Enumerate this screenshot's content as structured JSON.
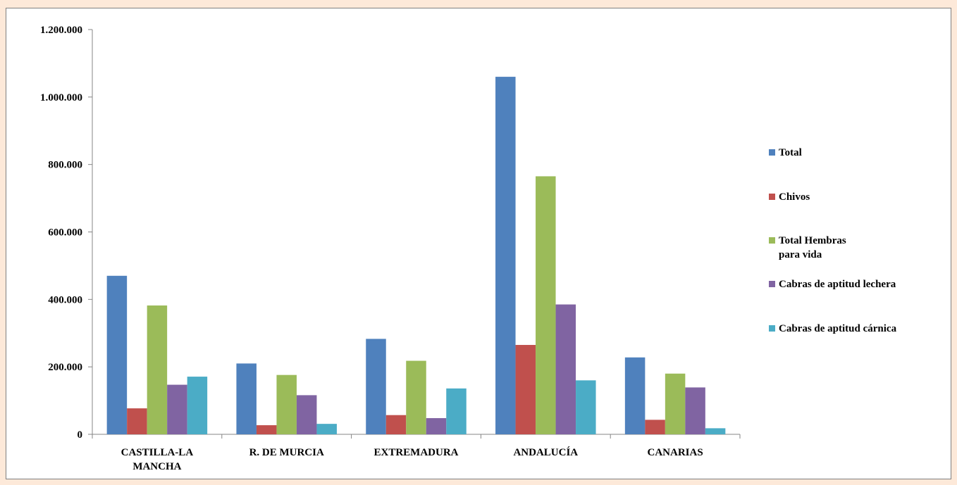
{
  "chart_data": {
    "type": "bar",
    "categories": [
      "CASTILLA-LA MANCHA",
      "R. DE MURCIA",
      "EXTREMADURA",
      "ANDALUCÍA",
      "CANARIAS"
    ],
    "category_lines": [
      [
        "CASTILLA-LA",
        "MANCHA"
      ],
      [
        "R. DE MURCIA"
      ],
      [
        "EXTREMADURA"
      ],
      [
        "ANDALUCÍA"
      ],
      [
        "CANARIAS"
      ]
    ],
    "series": [
      {
        "name": "Total",
        "color": "#4f81bd",
        "values": [
          470000,
          210000,
          283000,
          1060000,
          228000
        ]
      },
      {
        "name": "Chivos",
        "color": "#c0504d",
        "values": [
          77000,
          27000,
          57000,
          265000,
          43000
        ]
      },
      {
        "name": "Total Hembras para vida",
        "name_lines": [
          "Total Hembras",
          "para vida"
        ],
        "color": "#9bbb59",
        "values": [
          382000,
          176000,
          218000,
          765000,
          180000
        ]
      },
      {
        "name": "Cabras de aptitud lechera",
        "color": "#8064a2",
        "values": [
          147000,
          116000,
          48000,
          385000,
          139000
        ]
      },
      {
        "name": "Cabras de aptitud cárnica",
        "color": "#4bacc6",
        "values": [
          171000,
          31000,
          136000,
          160000,
          18000
        ]
      }
    ],
    "yticks": [
      "0",
      "200.000",
      "400.000",
      "600.000",
      "800.000",
      "1.000.000",
      "1.200.000"
    ],
    "ylim": [
      0,
      1200000
    ],
    "grid": false,
    "legend_position": "right"
  }
}
